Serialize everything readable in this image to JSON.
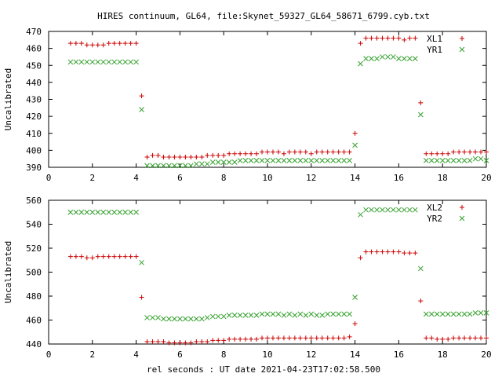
{
  "title": "HIRES continuum, GL64, file:Skynet_59327_GL64_58671_6799.cyb.txt",
  "xlabel": "rel seconds : UT date 2021-04-23T17:02:58.500",
  "colors": {
    "series1": "#cc0000",
    "series2": "#33a02c",
    "axis": "#000000"
  },
  "chart_data": [
    {
      "type": "scatter",
      "ylabel": "Uncalibrated",
      "xlim": [
        0,
        20
      ],
      "ylim": [
        390,
        470
      ],
      "xticks": [
        0,
        2,
        4,
        6,
        8,
        10,
        12,
        14,
        16,
        18,
        20
      ],
      "yticks": [
        390,
        400,
        410,
        420,
        430,
        440,
        450,
        460,
        470
      ],
      "legend_position": "top-right",
      "grid": false,
      "series": [
        {
          "name": "XL1",
          "marker": "plus",
          "x": [
            1.0,
            1.25,
            1.5,
            1.75,
            2.0,
            2.25,
            2.5,
            2.75,
            3.0,
            3.25,
            3.5,
            3.75,
            4.0,
            4.25,
            4.5,
            4.75,
            5.0,
            5.25,
            5.5,
            5.75,
            6.0,
            6.25,
            6.5,
            6.75,
            7.0,
            7.25,
            7.5,
            7.75,
            8.0,
            8.25,
            8.5,
            8.75,
            9.0,
            9.25,
            9.5,
            9.75,
            10.0,
            10.25,
            10.5,
            10.75,
            11.0,
            11.25,
            11.5,
            11.75,
            12.0,
            12.25,
            12.5,
            12.75,
            13.0,
            13.25,
            13.5,
            13.75,
            14.0,
            14.25,
            14.5,
            14.75,
            15.0,
            15.25,
            15.5,
            15.75,
            16.0,
            16.25,
            16.5,
            16.75,
            17.0,
            17.25,
            17.5,
            17.75,
            18.0,
            18.25,
            18.5,
            18.75,
            19.0,
            19.25,
            19.5,
            19.75,
            20.0
          ],
          "y": [
            463,
            463,
            463,
            462,
            462,
            462,
            462,
            463,
            463,
            463,
            463,
            463,
            463,
            432,
            396,
            397,
            397,
            396,
            396,
            396,
            396,
            396,
            396,
            396,
            396,
            397,
            397,
            397,
            397,
            398,
            398,
            398,
            398,
            398,
            398,
            399,
            399,
            399,
            399,
            398,
            399,
            399,
            399,
            399,
            398,
            399,
            399,
            399,
            399,
            399,
            399,
            399,
            410,
            463,
            466,
            466,
            466,
            466,
            466,
            466,
            466,
            465,
            466,
            466,
            428,
            398,
            398,
            398,
            398,
            398,
            399,
            399,
            399,
            399,
            399,
            399,
            399
          ]
        },
        {
          "name": "YR1",
          "marker": "cross",
          "x": [
            1.0,
            1.25,
            1.5,
            1.75,
            2.0,
            2.25,
            2.5,
            2.75,
            3.0,
            3.25,
            3.5,
            3.75,
            4.0,
            4.25,
            4.5,
            4.75,
            5.0,
            5.25,
            5.5,
            5.75,
            6.0,
            6.25,
            6.5,
            6.75,
            7.0,
            7.25,
            7.5,
            7.75,
            8.0,
            8.25,
            8.5,
            8.75,
            9.0,
            9.25,
            9.5,
            9.75,
            10.0,
            10.25,
            10.5,
            10.75,
            11.0,
            11.25,
            11.5,
            11.75,
            12.0,
            12.25,
            12.5,
            12.75,
            13.0,
            13.25,
            13.5,
            13.75,
            14.0,
            14.25,
            14.5,
            14.75,
            15.0,
            15.25,
            15.5,
            15.75,
            16.0,
            16.25,
            16.5,
            16.75,
            17.0,
            17.25,
            17.5,
            17.75,
            18.0,
            18.25,
            18.5,
            18.75,
            19.0,
            19.25,
            19.5,
            19.75,
            20.0
          ],
          "y": [
            452,
            452,
            452,
            452,
            452,
            452,
            452,
            452,
            452,
            452,
            452,
            452,
            452,
            424,
            391,
            391,
            391,
            391,
            391,
            391,
            391,
            391,
            391,
            392,
            392,
            392,
            393,
            393,
            393,
            393,
            393,
            394,
            394,
            394,
            394,
            394,
            394,
            394,
            394,
            394,
            394,
            394,
            394,
            394,
            394,
            394,
            394,
            394,
            394,
            394,
            394,
            394,
            403,
            451,
            454,
            454,
            454,
            455,
            455,
            455,
            454,
            454,
            454,
            454,
            421,
            394,
            394,
            394,
            394,
            394,
            394,
            394,
            394,
            394,
            395,
            395,
            394
          ]
        }
      ]
    },
    {
      "type": "scatter",
      "ylabel": "Uncalibrated",
      "xlim": [
        0,
        20
      ],
      "ylim": [
        440,
        560
      ],
      "xticks": [
        0,
        2,
        4,
        6,
        8,
        10,
        12,
        14,
        16,
        18,
        20
      ],
      "yticks": [
        440,
        460,
        480,
        500,
        520,
        540,
        560
      ],
      "legend_position": "top-right",
      "grid": false,
      "series": [
        {
          "name": "XL2",
          "marker": "plus",
          "x": [
            1.0,
            1.25,
            1.5,
            1.75,
            2.0,
            2.25,
            2.5,
            2.75,
            3.0,
            3.25,
            3.5,
            3.75,
            4.0,
            4.25,
            4.5,
            4.75,
            5.0,
            5.25,
            5.5,
            5.75,
            6.0,
            6.25,
            6.5,
            6.75,
            7.0,
            7.25,
            7.5,
            7.75,
            8.0,
            8.25,
            8.5,
            8.75,
            9.0,
            9.25,
            9.5,
            9.75,
            10.0,
            10.25,
            10.5,
            10.75,
            11.0,
            11.25,
            11.5,
            11.75,
            12.0,
            12.25,
            12.5,
            12.75,
            13.0,
            13.25,
            13.5,
            13.75,
            14.0,
            14.25,
            14.5,
            14.75,
            15.0,
            15.25,
            15.5,
            15.75,
            16.0,
            16.25,
            16.5,
            16.75,
            17.0,
            17.25,
            17.5,
            17.75,
            18.0,
            18.25,
            18.5,
            18.75,
            19.0,
            19.25,
            19.5,
            19.75,
            20.0
          ],
          "y": [
            513,
            513,
            513,
            512,
            512,
            513,
            513,
            513,
            513,
            513,
            513,
            513,
            513,
            479,
            442,
            442,
            442,
            442,
            441,
            441,
            441,
            441,
            441,
            442,
            442,
            442,
            443,
            443,
            443,
            444,
            444,
            444,
            444,
            444,
            444,
            445,
            445,
            445,
            445,
            445,
            445,
            445,
            445,
            445,
            445,
            445,
            445,
            445,
            445,
            445,
            445,
            446,
            457,
            512,
            517,
            517,
            517,
            517,
            517,
            517,
            517,
            516,
            516,
            516,
            476,
            445,
            445,
            444,
            444,
            444,
            445,
            445,
            445,
            445,
            445,
            445,
            445
          ]
        },
        {
          "name": "YR2",
          "marker": "cross",
          "x": [
            1.0,
            1.25,
            1.5,
            1.75,
            2.0,
            2.25,
            2.5,
            2.75,
            3.0,
            3.25,
            3.5,
            3.75,
            4.0,
            4.25,
            4.5,
            4.75,
            5.0,
            5.25,
            5.5,
            5.75,
            6.0,
            6.25,
            6.5,
            6.75,
            7.0,
            7.25,
            7.5,
            7.75,
            8.0,
            8.25,
            8.5,
            8.75,
            9.0,
            9.25,
            9.5,
            9.75,
            10.0,
            10.25,
            10.5,
            10.75,
            11.0,
            11.25,
            11.5,
            11.75,
            12.0,
            12.25,
            12.5,
            12.75,
            13.0,
            13.25,
            13.5,
            13.75,
            14.0,
            14.25,
            14.5,
            14.75,
            15.0,
            15.25,
            15.5,
            15.75,
            16.0,
            16.25,
            16.5,
            16.75,
            17.0,
            17.25,
            17.5,
            17.75,
            18.0,
            18.25,
            18.5,
            18.75,
            19.0,
            19.25,
            19.5,
            19.75,
            20.0
          ],
          "y": [
            550,
            550,
            550,
            550,
            550,
            550,
            550,
            550,
            550,
            550,
            550,
            550,
            550,
            508,
            462,
            462,
            462,
            461,
            461,
            461,
            461,
            461,
            461,
            461,
            461,
            462,
            463,
            463,
            463,
            464,
            464,
            464,
            464,
            464,
            464,
            465,
            465,
            465,
            465,
            464,
            465,
            464,
            465,
            464,
            465,
            464,
            464,
            465,
            465,
            465,
            465,
            465,
            479,
            548,
            552,
            552,
            552,
            552,
            552,
            552,
            552,
            552,
            552,
            552,
            503,
            465,
            465,
            465,
            465,
            465,
            465,
            465,
            465,
            465,
            466,
            466,
            466
          ]
        }
      ]
    }
  ]
}
